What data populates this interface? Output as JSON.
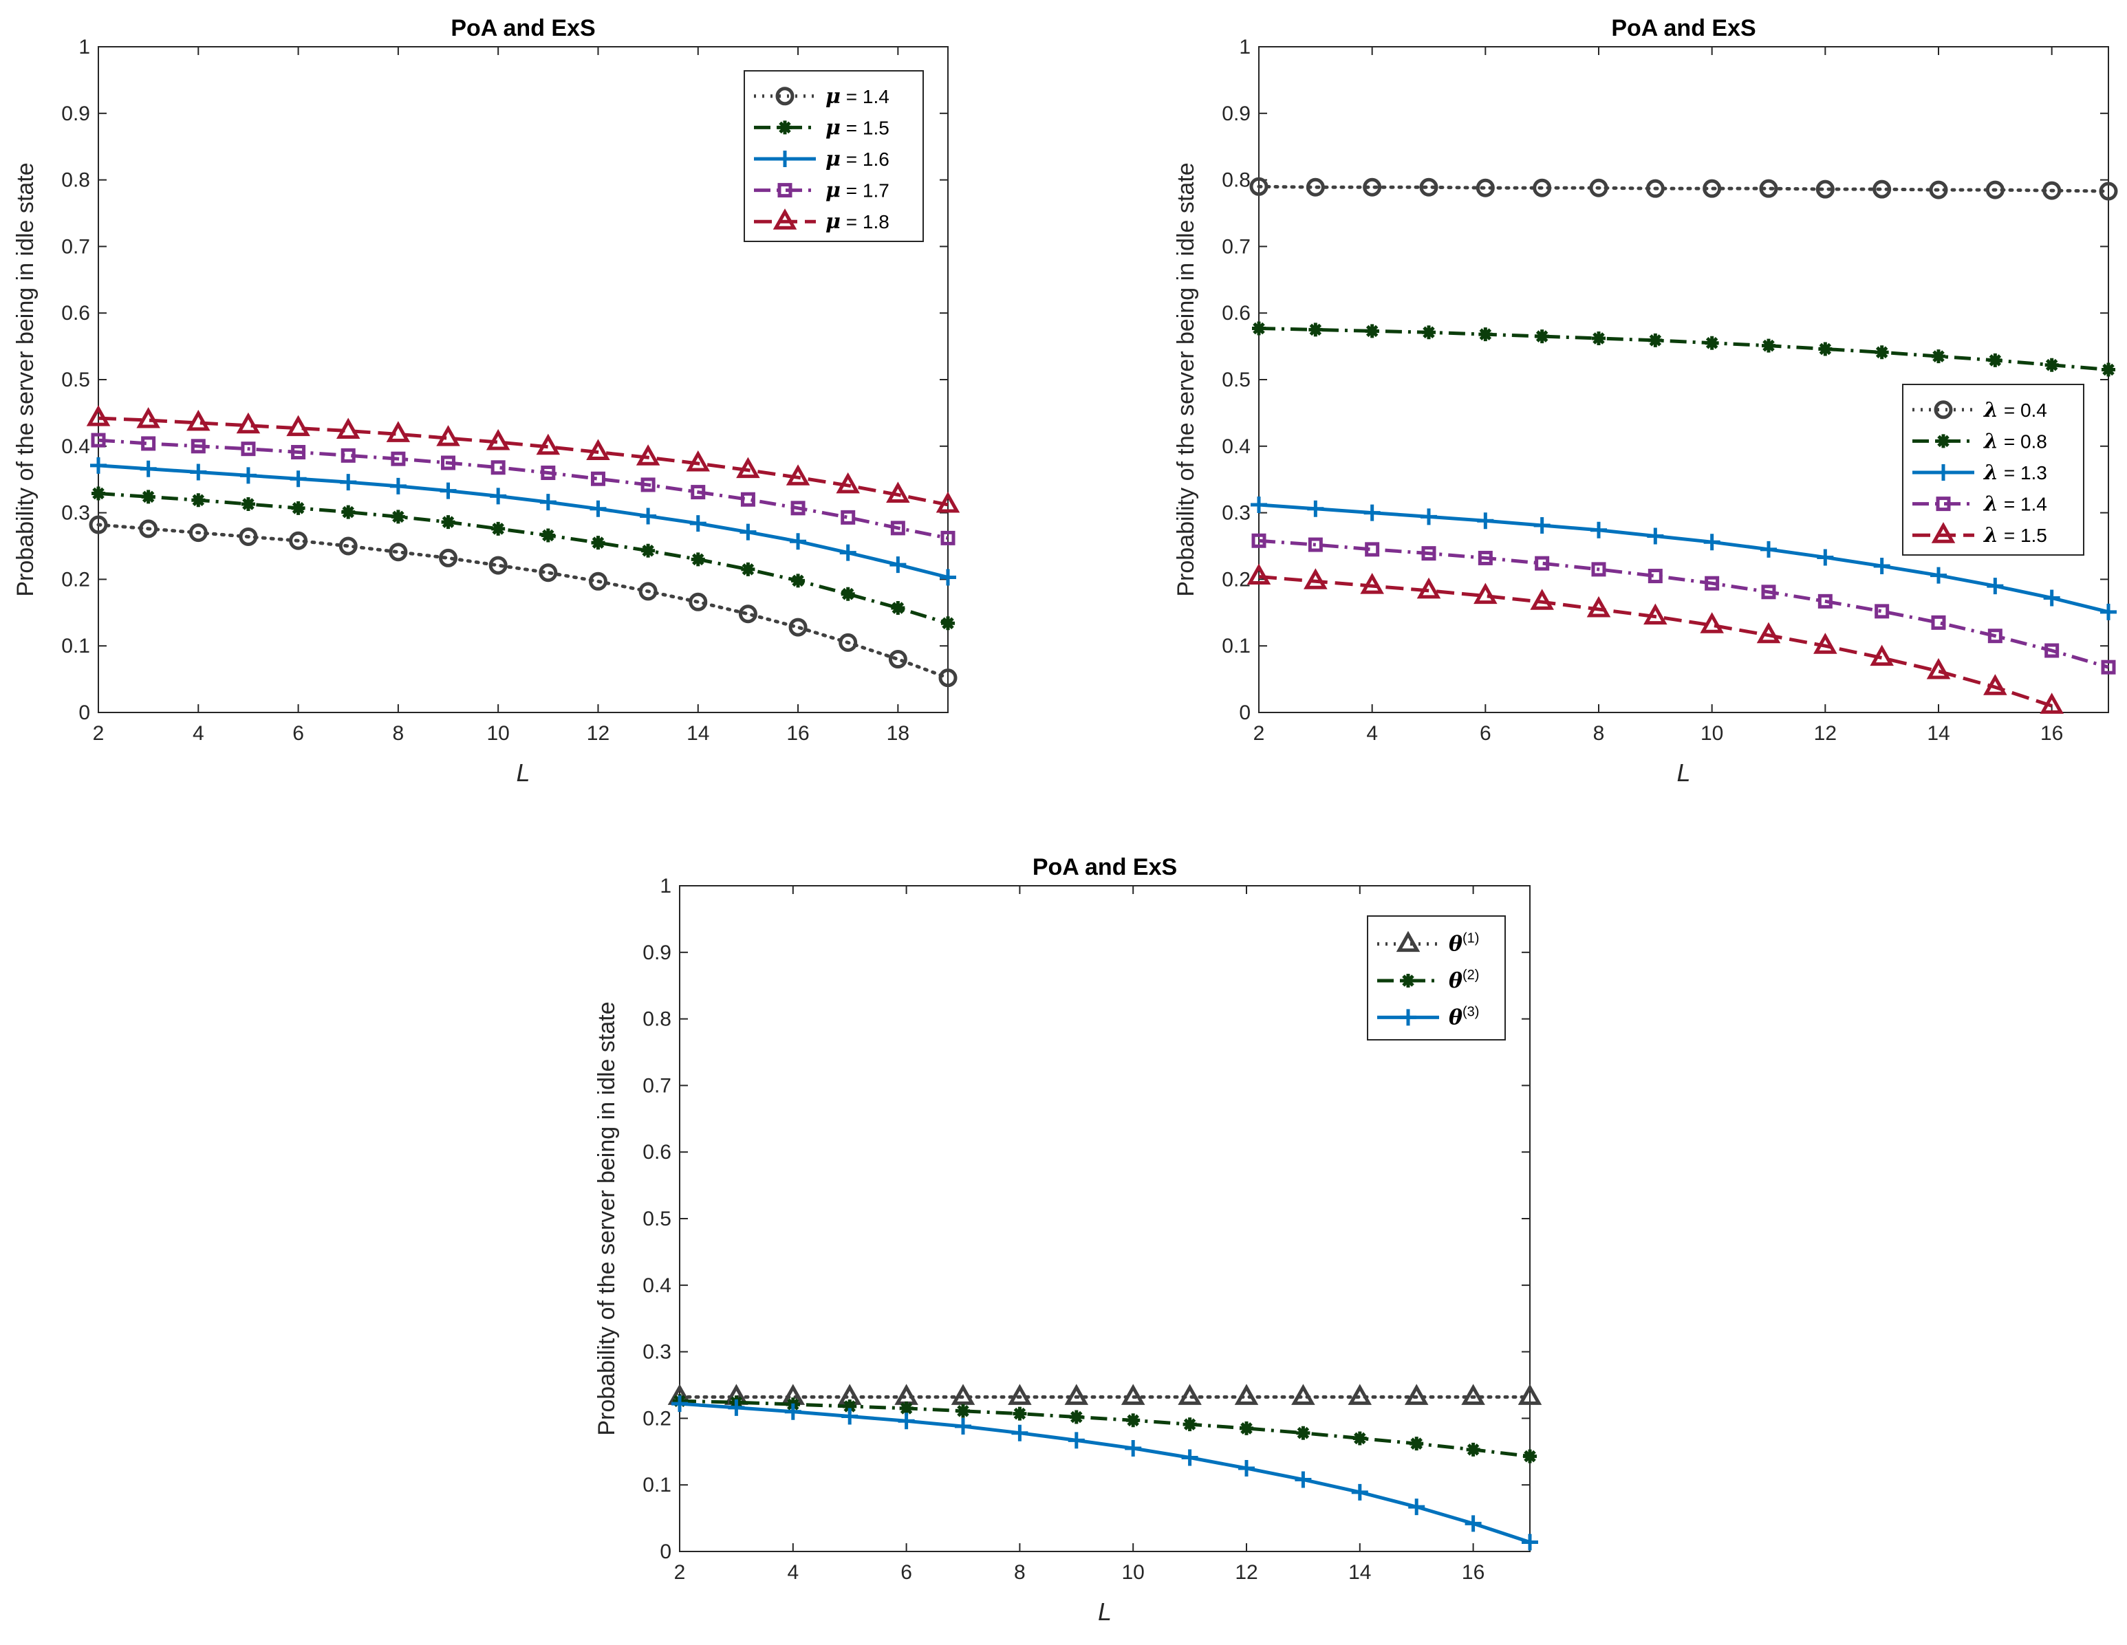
{
  "chart_data": [
    {
      "type": "line",
      "title": "PoA and ExS",
      "xlabel": "L",
      "ylabel": "Probability of the server being in idle state",
      "xlim": [
        2,
        19
      ],
      "ylim": [
        0,
        1
      ],
      "xticks": [
        "2",
        "4",
        "6",
        "8",
        "10",
        "12",
        "14",
        "16",
        "18"
      ],
      "yticks": [
        "0",
        "0.1",
        "0.2",
        "0.3",
        "0.4",
        "0.5",
        "0.6",
        "0.7",
        "0.8",
        "0.9",
        "1"
      ],
      "legend_position": "top-right",
      "x": [
        2,
        3,
        4,
        5,
        6,
        7,
        8,
        9,
        10,
        11,
        12,
        13,
        14,
        15,
        16,
        17,
        18,
        19
      ],
      "series": [
        {
          "name": "μ = 1.4",
          "symbol": "μ",
          "value_text": " = 1.4",
          "color": "#404040",
          "dash": "dotted",
          "marker": "circle",
          "values": [
            0.282,
            0.276,
            0.27,
            0.264,
            0.258,
            0.25,
            0.241,
            0.232,
            0.221,
            0.21,
            0.197,
            0.182,
            0.166,
            0.148,
            0.128,
            0.105,
            0.08,
            0.052
          ]
        },
        {
          "name": "μ = 1.5",
          "symbol": "μ",
          "value_text": " = 1.5",
          "color": "#0b3d0b",
          "dash": "dashdot",
          "marker": "asterisk",
          "values": [
            0.329,
            0.324,
            0.319,
            0.313,
            0.307,
            0.301,
            0.294,
            0.286,
            0.276,
            0.266,
            0.255,
            0.243,
            0.23,
            0.215,
            0.198,
            0.178,
            0.157,
            0.134
          ]
        },
        {
          "name": "μ = 1.6",
          "symbol": "μ",
          "value_text": " = 1.6",
          "color": "#0072bd",
          "dash": "solid",
          "marker": "plus",
          "values": [
            0.371,
            0.366,
            0.361,
            0.356,
            0.351,
            0.346,
            0.34,
            0.333,
            0.325,
            0.316,
            0.306,
            0.295,
            0.284,
            0.271,
            0.257,
            0.24,
            0.222,
            0.203
          ]
        },
        {
          "name": "μ = 1.7",
          "symbol": "μ",
          "value_text": " = 1.7",
          "color": "#7e2f8e",
          "dash": "dashdot",
          "marker": "square",
          "values": [
            0.409,
            0.404,
            0.4,
            0.396,
            0.391,
            0.386,
            0.381,
            0.375,
            0.368,
            0.36,
            0.351,
            0.342,
            0.331,
            0.32,
            0.307,
            0.293,
            0.277,
            0.262
          ]
        },
        {
          "name": "μ = 1.8",
          "symbol": "μ",
          "value_text": " = 1.8",
          "color": "#a2142f",
          "dash": "dashed",
          "marker": "triangle",
          "values": [
            0.442,
            0.439,
            0.435,
            0.431,
            0.427,
            0.423,
            0.418,
            0.412,
            0.406,
            0.399,
            0.391,
            0.383,
            0.374,
            0.364,
            0.353,
            0.341,
            0.327,
            0.312
          ]
        }
      ]
    },
    {
      "type": "line",
      "title": "PoA and ExS",
      "xlabel": "L",
      "ylabel": "Probability of the server being in idle state",
      "xlim": [
        2,
        17
      ],
      "ylim": [
        0,
        1
      ],
      "xticks": [
        "2",
        "4",
        "6",
        "8",
        "10",
        "12",
        "14",
        "16"
      ],
      "yticks": [
        "0",
        "0.1",
        "0.2",
        "0.3",
        "0.4",
        "0.5",
        "0.6",
        "0.7",
        "0.8",
        "0.9",
        "1"
      ],
      "legend_position": "middle-right",
      "series": [
        {
          "name": "λ = 0.4",
          "symbol": "λ",
          "value_text": " = 0.4",
          "color": "#404040",
          "dash": "dotted",
          "marker": "circle",
          "x": [
            2,
            3,
            4,
            5,
            6,
            7,
            8,
            9,
            10,
            11,
            12,
            13,
            14,
            15,
            16,
            17
          ],
          "values": [
            0.79,
            0.789,
            0.789,
            0.789,
            0.788,
            0.788,
            0.788,
            0.787,
            0.787,
            0.787,
            0.786,
            0.786,
            0.785,
            0.785,
            0.784,
            0.783
          ]
        },
        {
          "name": "λ = 0.8",
          "symbol": "λ",
          "value_text": " = 0.8",
          "color": "#0b3d0b",
          "dash": "dashdot",
          "marker": "asterisk",
          "x": [
            2,
            3,
            4,
            5,
            6,
            7,
            8,
            9,
            10,
            11,
            12,
            13,
            14,
            15,
            16,
            17
          ],
          "values": [
            0.577,
            0.575,
            0.573,
            0.571,
            0.568,
            0.565,
            0.562,
            0.559,
            0.555,
            0.551,
            0.546,
            0.541,
            0.535,
            0.529,
            0.522,
            0.515
          ]
        },
        {
          "name": "λ = 1.3",
          "symbol": "λ",
          "value_text": " = 1.3",
          "color": "#0072bd",
          "dash": "solid",
          "marker": "plus",
          "x": [
            2,
            3,
            4,
            5,
            6,
            7,
            8,
            9,
            10,
            11,
            12,
            13,
            14,
            15,
            16,
            17
          ],
          "values": [
            0.312,
            0.306,
            0.3,
            0.294,
            0.288,
            0.281,
            0.274,
            0.265,
            0.256,
            0.245,
            0.233,
            0.22,
            0.206,
            0.19,
            0.172,
            0.151
          ]
        },
        {
          "name": "λ = 1.4",
          "symbol": "λ",
          "value_text": " = 1.4",
          "color": "#7e2f8e",
          "dash": "dashdot",
          "marker": "square",
          "x": [
            2,
            3,
            4,
            5,
            6,
            7,
            8,
            9,
            10,
            11,
            12,
            13,
            14,
            15,
            16,
            17
          ],
          "values": [
            0.258,
            0.252,
            0.245,
            0.239,
            0.232,
            0.224,
            0.215,
            0.205,
            0.194,
            0.181,
            0.167,
            0.152,
            0.135,
            0.115,
            0.093,
            0.068
          ]
        },
        {
          "name": "λ = 1.5",
          "symbol": "λ",
          "value_text": " = 1.5",
          "color": "#a2142f",
          "dash": "dashed",
          "marker": "triangle",
          "x": [
            2,
            3,
            4,
            5,
            6,
            7,
            8,
            9,
            10,
            11,
            12,
            13,
            14,
            15,
            16
          ],
          "values": [
            0.204,
            0.197,
            0.19,
            0.183,
            0.175,
            0.166,
            0.155,
            0.144,
            0.131,
            0.116,
            0.1,
            0.082,
            0.062,
            0.038,
            0.01
          ]
        }
      ]
    },
    {
      "type": "line",
      "title": "PoA and ExS",
      "xlabel": "L",
      "ylabel": "Probability of the server being in idle state",
      "xlim": [
        2,
        17
      ],
      "ylim": [
        0,
        1
      ],
      "xticks": [
        "2",
        "4",
        "6",
        "8",
        "10",
        "12",
        "14",
        "16"
      ],
      "yticks": [
        "0",
        "0.1",
        "0.2",
        "0.3",
        "0.4",
        "0.5",
        "0.6",
        "0.7",
        "0.8",
        "0.9",
        "1"
      ],
      "legend_position": "top-right",
      "x": [
        2,
        3,
        4,
        5,
        6,
        7,
        8,
        9,
        10,
        11,
        12,
        13,
        14,
        15,
        16,
        17
      ],
      "series": [
        {
          "name": "θ(1)",
          "symbol": "θ",
          "superscript": "(1)",
          "color": "#404040",
          "dash": "dotted",
          "marker": "triangle",
          "values": [
            0.232,
            0.232,
            0.232,
            0.232,
            0.232,
            0.232,
            0.232,
            0.232,
            0.232,
            0.232,
            0.232,
            0.232,
            0.232,
            0.232,
            0.232,
            0.232
          ]
        },
        {
          "name": "θ(2)",
          "symbol": "θ",
          "superscript": "(2)",
          "color": "#0b3d0b",
          "dash": "dashdot",
          "marker": "asterisk",
          "values": [
            0.226,
            0.224,
            0.221,
            0.218,
            0.215,
            0.211,
            0.207,
            0.202,
            0.197,
            0.191,
            0.185,
            0.178,
            0.17,
            0.162,
            0.153,
            0.143
          ]
        },
        {
          "name": "θ(3)",
          "symbol": "θ",
          "superscript": "(3)",
          "color": "#0072bd",
          "dash": "solid",
          "marker": "plus",
          "values": [
            0.222,
            0.216,
            0.21,
            0.203,
            0.196,
            0.188,
            0.178,
            0.167,
            0.155,
            0.141,
            0.125,
            0.108,
            0.089,
            0.067,
            0.042,
            0.014
          ]
        }
      ]
    }
  ]
}
